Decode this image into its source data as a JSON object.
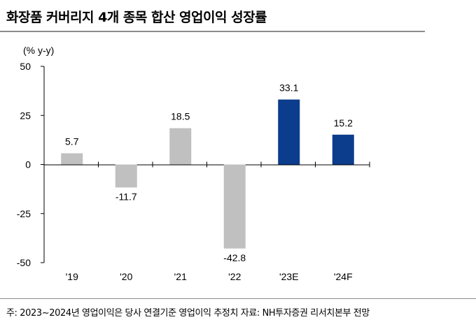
{
  "header": {
    "title": "화장품 커버리지 4개 종목 합산 영업이익 성장률"
  },
  "footer": {
    "note": "주: 2023~2024년 영업이익은 당사 연결기준 영업이익 추정치 자료: NH투자증권 리서치본부 전망"
  },
  "colors": {
    "actual_bar": "#c0c0c0",
    "forecast_bar": "#0c3c8c",
    "axis": "#000000",
    "rule": "#8c8c8c"
  },
  "chart_data": {
    "type": "bar",
    "title": "화장품 커버리지 4개 종목 합산 영업이익 성장률",
    "unit_label": "(% y-y)",
    "xlabel": "",
    "ylabel": "",
    "categories": [
      "'19",
      "'20",
      "'21",
      "'22",
      "'23E",
      "'24F"
    ],
    "values": [
      5.7,
      -11.7,
      18.5,
      -42.8,
      33.1,
      15.2
    ],
    "value_labels": [
      "5.7",
      "-11.7",
      "18.5",
      "-42.8",
      "33.1",
      "15.2"
    ],
    "forecast": [
      false,
      false,
      false,
      false,
      true,
      true
    ],
    "ylim": [
      -50,
      50
    ],
    "yticks": [
      50,
      25,
      0,
      -25,
      -50
    ],
    "ytick_labels": [
      "50",
      "25",
      "0",
      "-25",
      "-50"
    ],
    "grid": false,
    "legend": "none"
  }
}
